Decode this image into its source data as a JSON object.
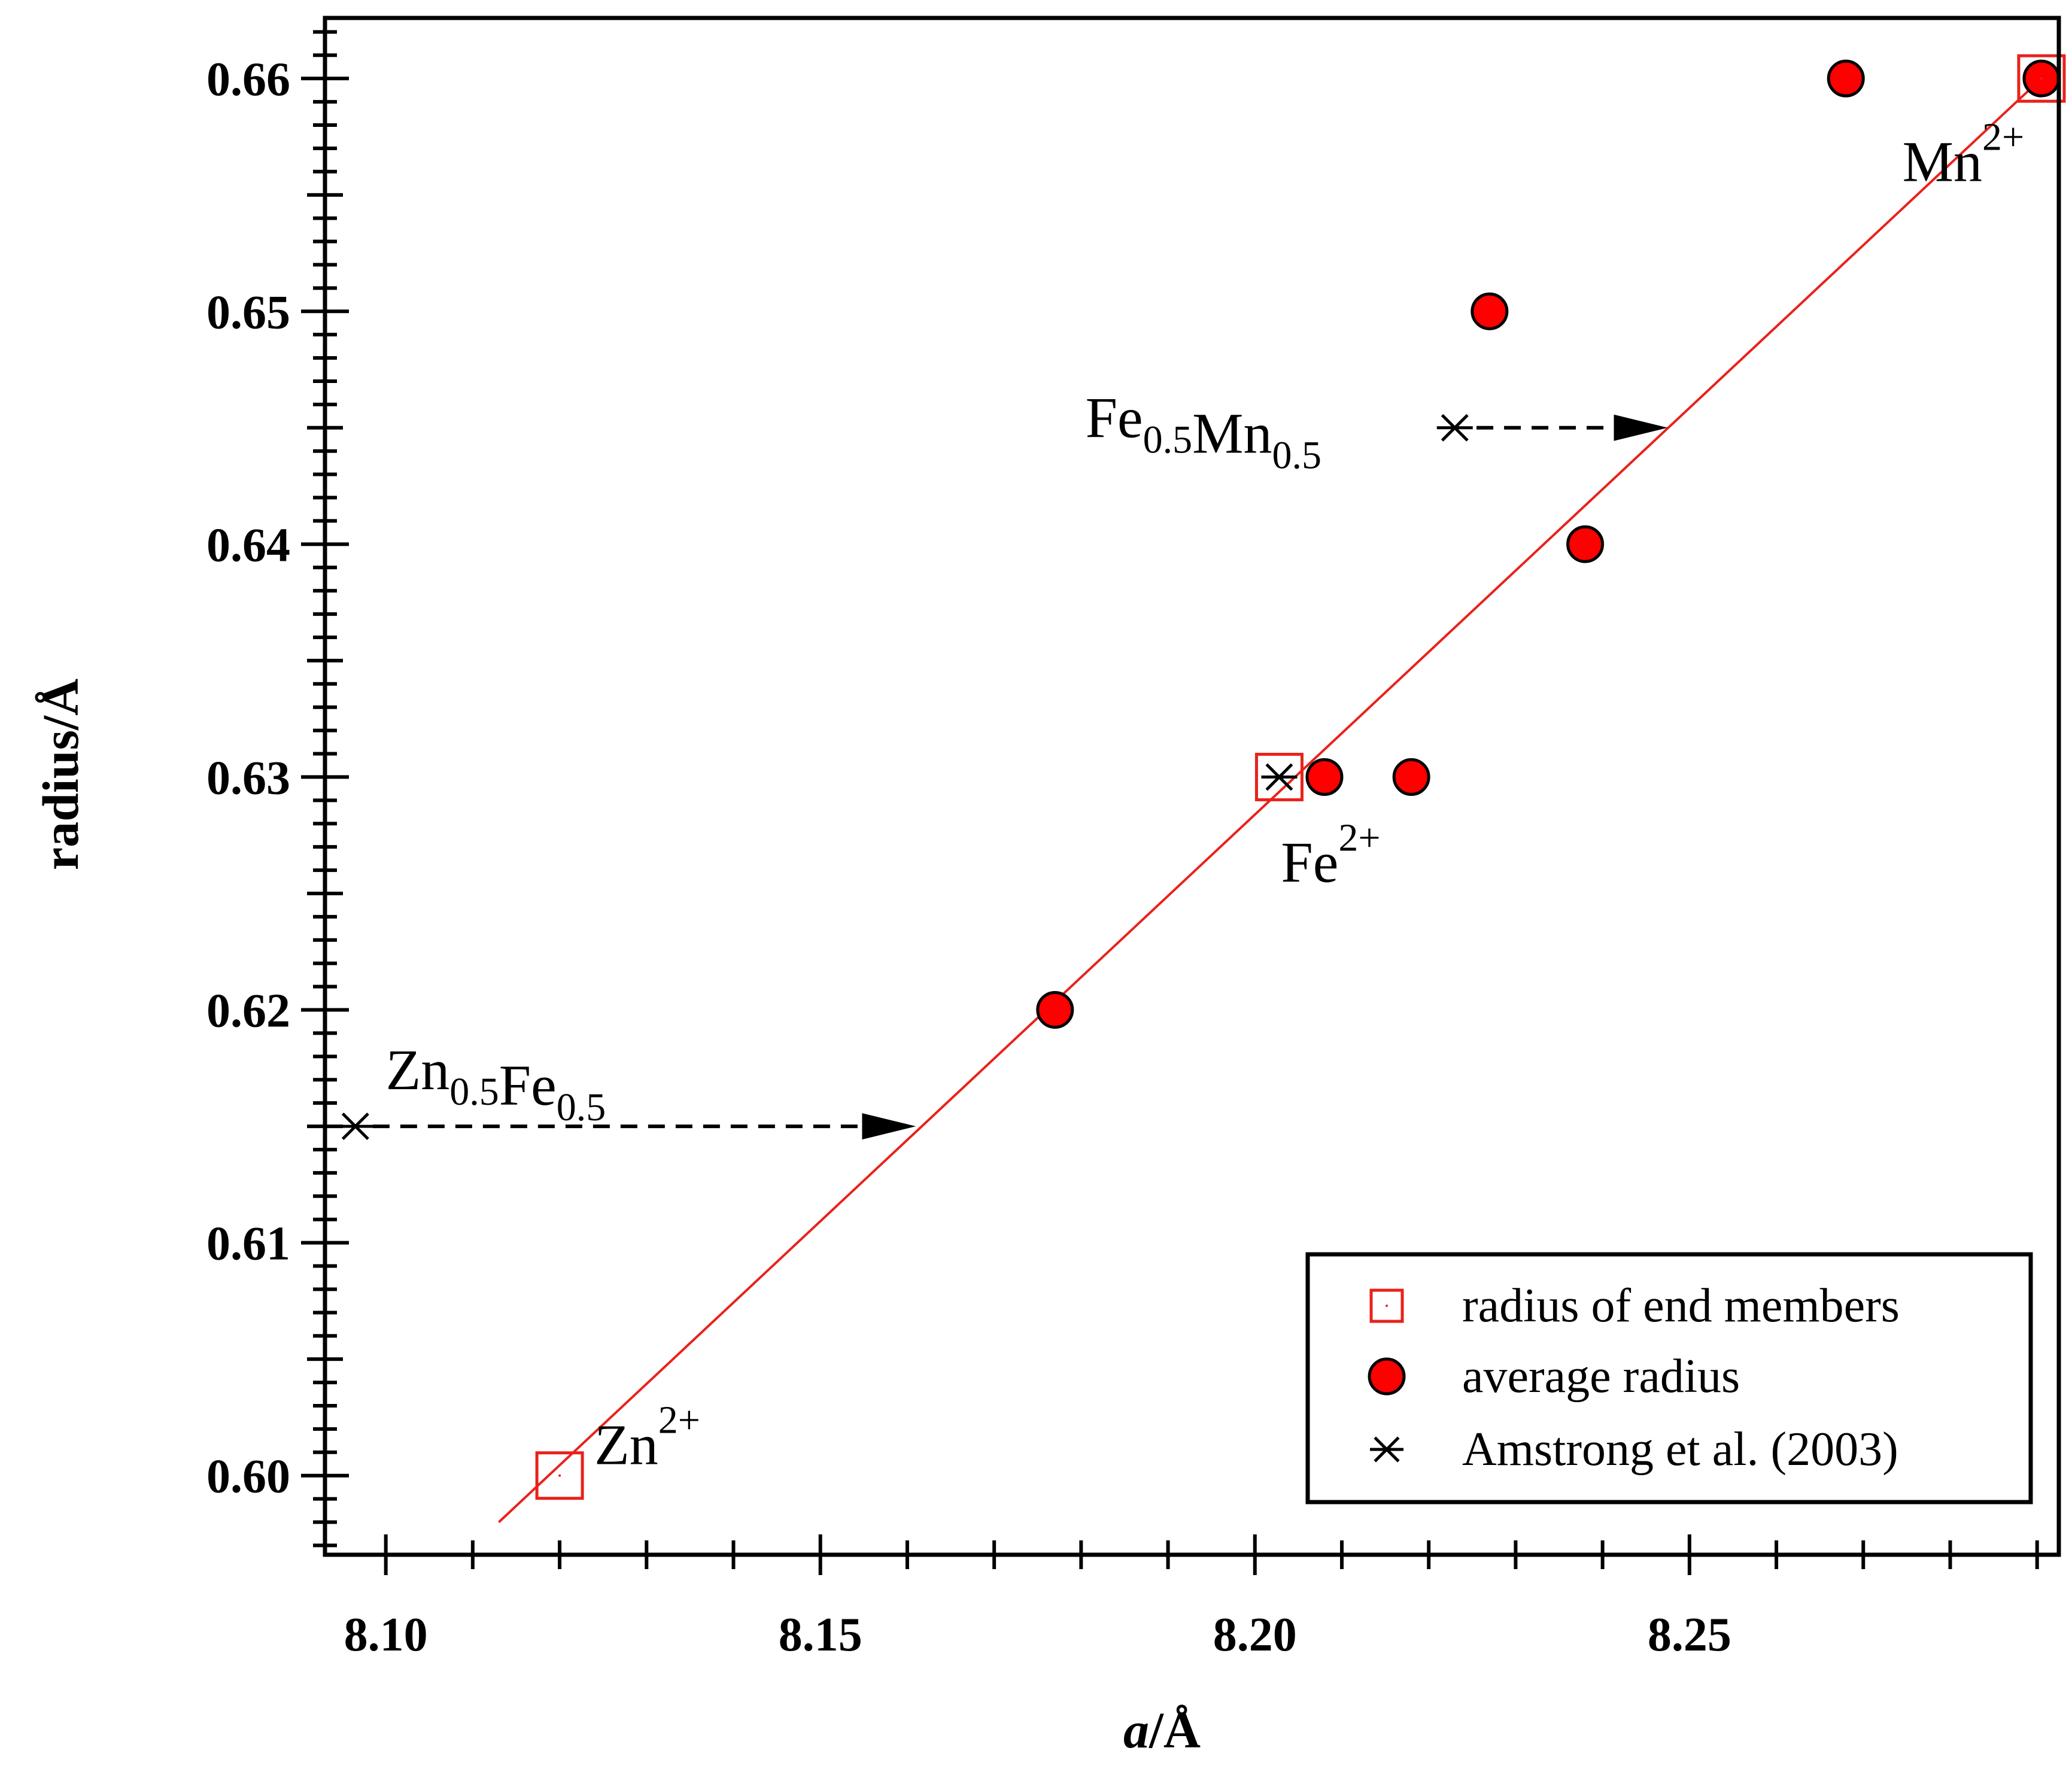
{
  "chart_data": {
    "type": "scatter",
    "title": "",
    "xlabel": {
      "italic_part": "a",
      "rest": "/Å"
    },
    "ylabel": "radius/Å",
    "xlim": [
      8.093,
      8.2925
    ],
    "ylim": [
      0.5966,
      0.6626
    ],
    "x_ticks": [
      {
        "value": 8.1,
        "label": "8.10"
      },
      {
        "value": 8.15,
        "label": "8.15"
      },
      {
        "value": 8.2,
        "label": "8.20"
      },
      {
        "value": 8.25,
        "label": "8.25"
      }
    ],
    "y_ticks": [
      {
        "value": 0.6,
        "label": "0.60"
      },
      {
        "value": 0.61,
        "label": "0.61"
      },
      {
        "value": 0.62,
        "label": "0.62"
      },
      {
        "value": 0.63,
        "label": "0.63"
      },
      {
        "value": 0.64,
        "label": "0.64"
      },
      {
        "value": 0.65,
        "label": "0.65"
      },
      {
        "value": 0.66,
        "label": "0.66"
      }
    ],
    "x_minor_step": 0.01,
    "y_minor_step": 0.001,
    "series": [
      {
        "name": "radius of end members",
        "marker": "open-square",
        "color": "#e8221b",
        "points": [
          {
            "x": 8.12,
            "y": 0.6
          },
          {
            "x": 8.2028,
            "y": 0.63
          },
          {
            "x": 8.2905,
            "y": 0.66
          }
        ]
      },
      {
        "name": "average radius",
        "marker": "filled-circle",
        "color": "#ff0000",
        "points": [
          {
            "x": 8.177,
            "y": 0.62
          },
          {
            "x": 8.208,
            "y": 0.63
          },
          {
            "x": 8.218,
            "y": 0.63
          },
          {
            "x": 8.227,
            "y": 0.65
          },
          {
            "x": 8.238,
            "y": 0.64
          },
          {
            "x": 8.268,
            "y": 0.66
          },
          {
            "x": 8.2905,
            "y": 0.66
          }
        ]
      },
      {
        "name": "Amstrong et al. (2003)",
        "marker": "asterisk",
        "color": "#000000",
        "points": [
          {
            "x": 8.0965,
            "y": 0.615
          },
          {
            "x": 8.2028,
            "y": 0.63
          },
          {
            "x": 8.223,
            "y": 0.645
          }
        ]
      }
    ],
    "fit_line": {
      "color": "#e8221b",
      "from": {
        "x": 8.113,
        "y": 0.598
      },
      "to": {
        "x": 8.2905,
        "y": 0.66
      }
    },
    "annotations": [
      {
        "id": "zn",
        "base": "Zn",
        "sup": "2+",
        "x": 8.124,
        "y": 0.6005
      },
      {
        "id": "fe",
        "base": "Fe",
        "sup": "2+",
        "x": 8.203,
        "y": 0.6255
      },
      {
        "id": "mn",
        "base": "Mn",
        "sup": "2+",
        "x": 8.2745,
        "y": 0.6556
      },
      {
        "id": "znfe",
        "parts": [
          [
            "Zn",
            "0.5"
          ],
          [
            "Fe",
            "0.5"
          ]
        ],
        "x": 8.1,
        "y": 0.6166
      },
      {
        "id": "femn",
        "parts": [
          [
            "Fe",
            "0.5"
          ],
          [
            "Mn",
            "0.5"
          ]
        ],
        "x": 8.1805,
        "y": 0.6446
      }
    ],
    "arrows": [
      {
        "id": "znfe-arrow",
        "from": {
          "x": 8.0985,
          "y": 0.615
        },
        "to": {
          "x": 8.161,
          "y": 0.615
        }
      },
      {
        "id": "femn-arrow",
        "from": {
          "x": 8.2255,
          "y": 0.645
        },
        "to": {
          "x": 8.2475,
          "y": 0.645
        }
      }
    ],
    "legend": {
      "position": "bottom-right",
      "entries": [
        {
          "label": "radius of end members",
          "marker": "open-square"
        },
        {
          "label": "average radius",
          "marker": "filled-circle"
        },
        {
          "label": "Amstrong et al. (2003)",
          "marker": "asterisk"
        }
      ]
    }
  }
}
